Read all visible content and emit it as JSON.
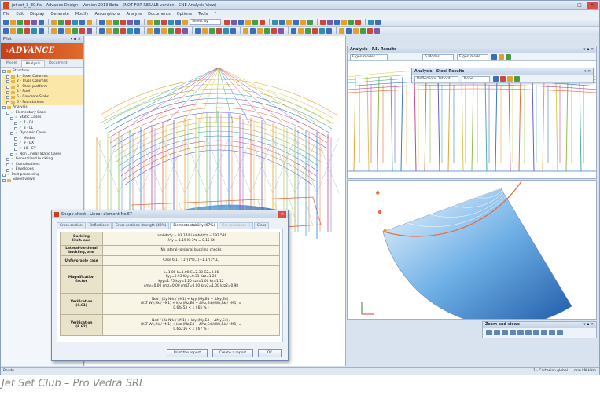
{
  "window": {
    "title": "jet set_3_30.fts – Advance Design – Version 2013 Beta – (NOT FOR RESALE version – CNE Analysis View)",
    "title_right": "jet set_3_30.fts",
    "minimize": "–",
    "maximize": "□",
    "close": "✕"
  },
  "menu": [
    "File",
    "Edit",
    "Display",
    "Generate",
    "Modify",
    "Assumptions",
    "Analyze",
    "Documents",
    "Options",
    "Tools",
    "?"
  ],
  "toolbar": {
    "select_combo": "Select by",
    "icon_colors": [
      "#3b6fb6",
      "#e2a12e",
      "#4a9a47",
      "#c94a3a",
      "#7d5aa6",
      "#3b6fb6",
      "#e2a12e",
      "#4a9a47",
      "#c94a3a",
      "#2e8fb0",
      "#3b6fb6",
      "#e2a12e"
    ]
  },
  "left_panel": {
    "header": "Pilot",
    "header_controls": "▾ ▪ ✕",
    "logo": "ADVANCE",
    "logo_prefix": "G",
    "tabs": [
      "Model",
      "Analysis",
      "Document"
    ],
    "active_tab": "Analysis",
    "tree": [
      {
        "label": "Structure",
        "level": 0,
        "kind": "folder"
      },
      {
        "label": "1 - Steel Columns",
        "level": 1,
        "kind": "folder"
      },
      {
        "label": "2 - Truss Columns",
        "level": 1,
        "kind": "folder"
      },
      {
        "label": "3 - Steel platform",
        "level": 1,
        "kind": "folder"
      },
      {
        "label": "4 - Roof",
        "level": 1,
        "kind": "folder"
      },
      {
        "label": "5 - Concrete Slabs",
        "level": 1,
        "kind": "folder"
      },
      {
        "label": "6 - Foundations",
        "level": 1,
        "kind": "folder"
      },
      {
        "label": "Analysis",
        "level": 0,
        "kind": "folder"
      },
      {
        "label": "Elementary Case",
        "level": 1,
        "kind": "check"
      },
      {
        "label": "Static Cases",
        "level": 2,
        "kind": "check"
      },
      {
        "label": "7 - DL",
        "level": 3,
        "kind": "check"
      },
      {
        "label": "8 - LL",
        "level": 3,
        "kind": "check"
      },
      {
        "label": "Dynamic Cases",
        "level": 2,
        "kind": "check"
      },
      {
        "label": "Modes",
        "level": 3,
        "kind": "check"
      },
      {
        "label": "9 - EX",
        "level": 3,
        "kind": "check"
      },
      {
        "label": "10 - EY",
        "level": 3,
        "kind": "check"
      },
      {
        "label": "Non Linear Static Cases",
        "level": 2,
        "kind": "check"
      },
      {
        "label": "Generalized buckling",
        "level": 1,
        "kind": "check"
      },
      {
        "label": "Combinations",
        "level": 1,
        "kind": "check"
      },
      {
        "label": "Envelopes",
        "level": 1,
        "kind": "check"
      },
      {
        "label": "Post processing",
        "level": 0,
        "kind": "check"
      },
      {
        "label": "Saved views",
        "level": 0,
        "kind": "folder"
      }
    ]
  },
  "results_panel": {
    "title": "Analysis - F.E. Results",
    "controls": "▾ ▪ ✕",
    "combo_left": "Eigen modes",
    "combo_mid": "6 Modes",
    "combo_right": "Eigen mode"
  },
  "steel_panel": {
    "title": "Analysis - Steel Results",
    "combo": "Deflections 1st ord",
    "combo2": "None"
  },
  "zoom_panel": {
    "title": "Zoom and views",
    "controls": "▾ ▪ ✕"
  },
  "status": {
    "left": "Ready",
    "right": "1 - Cartesian global",
    "right2": "mm  kN  kNm"
  },
  "dialog": {
    "title": "Shape sheet - Linear element No.67",
    "close": "✕",
    "tabs": [
      {
        "label": "Cross section",
        "state": "normal"
      },
      {
        "label": "Deflections",
        "state": "normal"
      },
      {
        "label": "Cross sections strength (43%)",
        "state": "normal"
      },
      {
        "label": "Elements stability (67%)",
        "state": "active"
      },
      {
        "label": "Fire resistance ()",
        "state": "disabled"
      },
      {
        "label": "Class",
        "state": "normal"
      }
    ],
    "rows": [
      {
        "label": "Buckling\nlimit. and",
        "value": "Lambda*y = 93.374   Lambda*z = 197.536\nλ*y = 1.19 Kt  λ*z = 0.15 Kt"
      },
      {
        "label": "Lateral-torsional\nbuckling, and",
        "value": "No lateral-torsional buckling checks"
      },
      {
        "label": "Unfavorable case",
        "value": "Case 6/17 : 1*(1*D,1)+1.1*(1*LL)"
      },
      {
        "label": "Magnification\nfactor",
        "value": "k=1.00  k=1.00  C=2.33  C2=0.36\nKyy=0.93  Kzy=0.31  Kzz=1.23\nkyy=1.75  kzy=1.20  kzz=1.00  kz=1.12\ncmy=0.00  cmz=0.00  cmLT=0.00  kyy2=1.00 kzz2=0.98"
      },
      {
        "label": "Verification\n(6.61)",
        "value": "Ned / (Xy Nrk / γM1) + kyy (My,Ed + ΔMy,Ed) /\n(XLT Wy,Rk / γM1) + kyz (Mz,Ed + ΔMz,Ed)/(Wz,Rk / γM1) =\n0.64453 < 1   ( 65 % )"
      },
      {
        "label": "Verification\n(6.62)",
        "value": "Ned / (Xz Nrk / γM1) + kzy (My,Ed + ΔMy,Ed) /\n(XLT Wy,Rk / γM1) + kzz (Mz,Ed + ΔMz,Ed)/(Wz,Rk / γM1) =\n0.66216 < 1   ( 67 % )"
      }
    ],
    "buttons": {
      "print": "Print the report",
      "create": "Create a report",
      "ok": "OK"
    }
  },
  "caption": "Jet Set Club – Pro Vedra SRL",
  "colors": {
    "accent": "#c6401a",
    "chrome": "#d9e3ef",
    "mesh_warm": "#e8a32e",
    "mesh_cool": "#3a7bd5",
    "dome_blue": "#2d6fb8"
  }
}
